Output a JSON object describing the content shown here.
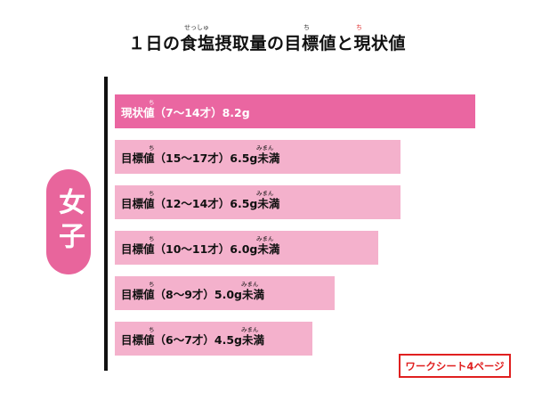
{
  "title": "１日の食塩摂取量の目標値と現状値",
  "title_ruby": {
    "sesshu": "せっしゅ",
    "chi1": "ち",
    "chi2": "ち"
  },
  "group_label": "女子",
  "worksheet_badge": "ワークシート4ページ",
  "ruby_chi": "ち",
  "ruby_miman": "みまん",
  "colors": {
    "current": "#ea66a1",
    "target": "#f4b1cc",
    "badge_border": "#e02020"
  },
  "chart_data": {
    "type": "bar",
    "orientation": "horizontal",
    "unit": "g",
    "categories": [
      "現状値（7～14才）",
      "目標値（15～17才）",
      "目標値（12～14才）",
      "目標値（10～11才）",
      "目標値（8～9才）",
      "目標値（6～7才）"
    ],
    "values": [
      8.2,
      6.5,
      6.5,
      6.0,
      5.0,
      4.5
    ],
    "labels": [
      "現状値（7～14才）8.2g",
      "目標値（15～17才）6.5g未満",
      "目標値（12～14才）6.5g未満",
      "目標値（10～11才）6.0g未満",
      "目標値（8～9才）5.0g未満",
      "目標値（6～7才）4.5g未満"
    ],
    "kinds": [
      "current",
      "target",
      "target",
      "target",
      "target",
      "target"
    ],
    "xlim": [
      0,
      9.5
    ],
    "grid": false,
    "legend": "none"
  }
}
